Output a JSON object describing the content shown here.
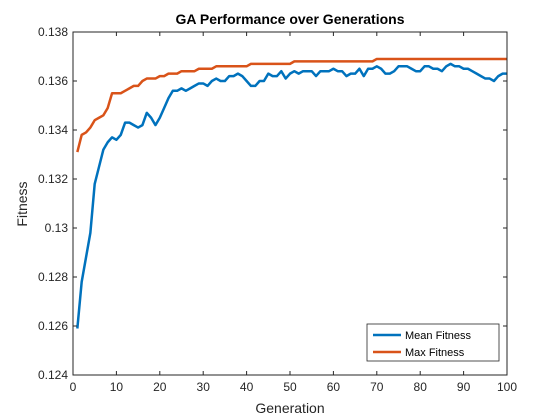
{
  "chart_data": {
    "type": "line",
    "title": "GA Performance over Generations",
    "xlabel": "Generation",
    "ylabel": "Fitness",
    "xlim": [
      0,
      100
    ],
    "ylim": [
      0.124,
      0.138
    ],
    "xticks": [
      0,
      10,
      20,
      30,
      40,
      50,
      60,
      70,
      80,
      90,
      100
    ],
    "xtick_labels": [
      "0",
      "10",
      "20",
      "30",
      "40",
      "50",
      "60",
      "70",
      "80",
      "90",
      "100"
    ],
    "yticks": [
      0.124,
      0.126,
      0.128,
      0.13,
      0.132,
      0.134,
      0.136,
      0.138
    ],
    "ytick_labels": [
      "0.124",
      "0.126",
      "0.128",
      "0.13",
      "0.132",
      "0.134",
      "0.136",
      "0.138"
    ],
    "grid": false,
    "legend_position": "bottom-right",
    "series": [
      {
        "name": "Mean Fitness",
        "color": "#0072bd",
        "x": [
          1,
          2,
          3,
          4,
          5,
          6,
          7,
          8,
          9,
          10,
          11,
          12,
          13,
          14,
          15,
          16,
          17,
          18,
          19,
          20,
          21,
          22,
          23,
          24,
          25,
          26,
          27,
          28,
          29,
          30,
          31,
          32,
          33,
          34,
          35,
          36,
          37,
          38,
          39,
          40,
          41,
          42,
          43,
          44,
          45,
          46,
          47,
          48,
          49,
          50,
          51,
          52,
          53,
          54,
          55,
          56,
          57,
          58,
          59,
          60,
          61,
          62,
          63,
          64,
          65,
          66,
          67,
          68,
          69,
          70,
          71,
          72,
          73,
          74,
          75,
          76,
          77,
          78,
          79,
          80,
          81,
          82,
          83,
          84,
          85,
          86,
          87,
          88,
          89,
          90,
          91,
          92,
          93,
          94,
          95,
          96,
          97,
          98,
          99,
          100
        ],
        "y": [
          0.1259,
          0.1278,
          0.1288,
          0.1298,
          0.1318,
          0.1325,
          0.1332,
          0.1335,
          0.1337,
          0.1336,
          0.1338,
          0.1343,
          0.1343,
          0.1342,
          0.1341,
          0.1342,
          0.1347,
          0.1345,
          0.1342,
          0.1345,
          0.1349,
          0.1353,
          0.1356,
          0.1356,
          0.1357,
          0.1356,
          0.1357,
          0.1358,
          0.1359,
          0.1359,
          0.1358,
          0.136,
          0.1361,
          0.136,
          0.136,
          0.1362,
          0.1362,
          0.1363,
          0.1362,
          0.136,
          0.1358,
          0.1358,
          0.136,
          0.136,
          0.1363,
          0.1362,
          0.1362,
          0.1364,
          0.1361,
          0.1363,
          0.1364,
          0.1363,
          0.1364,
          0.1364,
          0.1364,
          0.1362,
          0.1364,
          0.1364,
          0.1364,
          0.1365,
          0.1364,
          0.1364,
          0.1362,
          0.1363,
          0.1363,
          0.1365,
          0.1362,
          0.1365,
          0.1365,
          0.1366,
          0.1365,
          0.1363,
          0.1363,
          0.1364,
          0.1366,
          0.1366,
          0.1366,
          0.1365,
          0.1364,
          0.1364,
          0.1366,
          0.1366,
          0.1365,
          0.1365,
          0.1364,
          0.1366,
          0.1367,
          0.1366,
          0.1366,
          0.1365,
          0.1365,
          0.1364,
          0.1363,
          0.1362,
          0.1361,
          0.1361,
          0.136,
          0.1362,
          0.1363,
          0.1363
        ]
      },
      {
        "name": "Max Fitness",
        "color": "#d95319",
        "x": [
          1,
          2,
          3,
          4,
          5,
          6,
          7,
          8,
          9,
          10,
          11,
          12,
          13,
          14,
          15,
          16,
          17,
          18,
          19,
          20,
          21,
          22,
          23,
          24,
          25,
          26,
          27,
          28,
          29,
          30,
          31,
          32,
          33,
          34,
          35,
          36,
          37,
          38,
          39,
          40,
          41,
          42,
          43,
          44,
          45,
          46,
          47,
          48,
          49,
          50,
          51,
          52,
          53,
          54,
          55,
          56,
          57,
          58,
          59,
          60,
          61,
          62,
          63,
          64,
          65,
          66,
          67,
          68,
          69,
          70,
          71,
          72,
          73,
          74,
          75,
          76,
          77,
          78,
          79,
          80,
          81,
          82,
          83,
          84,
          85,
          86,
          87,
          88,
          89,
          90,
          91,
          92,
          93,
          94,
          95,
          96,
          97,
          98,
          99,
          100
        ],
        "y": [
          0.1331,
          0.1338,
          0.1339,
          0.1341,
          0.1344,
          0.1345,
          0.1346,
          0.1349,
          0.1355,
          0.1355,
          0.1355,
          0.1356,
          0.1357,
          0.1358,
          0.1358,
          0.136,
          0.1361,
          0.1361,
          0.1361,
          0.1362,
          0.1362,
          0.1363,
          0.1363,
          0.1363,
          0.1364,
          0.1364,
          0.1364,
          0.1364,
          0.1365,
          0.1365,
          0.1365,
          0.1365,
          0.1366,
          0.1366,
          0.1366,
          0.1366,
          0.1366,
          0.1366,
          0.1366,
          0.1366,
          0.1367,
          0.1367,
          0.1367,
          0.1367,
          0.1367,
          0.1367,
          0.1367,
          0.1367,
          0.1367,
          0.1367,
          0.1368,
          0.1368,
          0.1368,
          0.1368,
          0.1368,
          0.1368,
          0.1368,
          0.1368,
          0.1368,
          0.1368,
          0.1368,
          0.1368,
          0.1368,
          0.1368,
          0.1368,
          0.1368,
          0.1368,
          0.1368,
          0.1368,
          0.1369,
          0.1369,
          0.1369,
          0.1369,
          0.1369,
          0.1369,
          0.1369,
          0.1369,
          0.1369,
          0.1369,
          0.1369,
          0.1369,
          0.1369,
          0.1369,
          0.1369,
          0.1369,
          0.1369,
          0.1369,
          0.1369,
          0.1369,
          0.1369,
          0.1369,
          0.1369,
          0.1369,
          0.1369,
          0.1369,
          0.1369,
          0.1369,
          0.1369,
          0.1369,
          0.1369
        ]
      }
    ]
  }
}
